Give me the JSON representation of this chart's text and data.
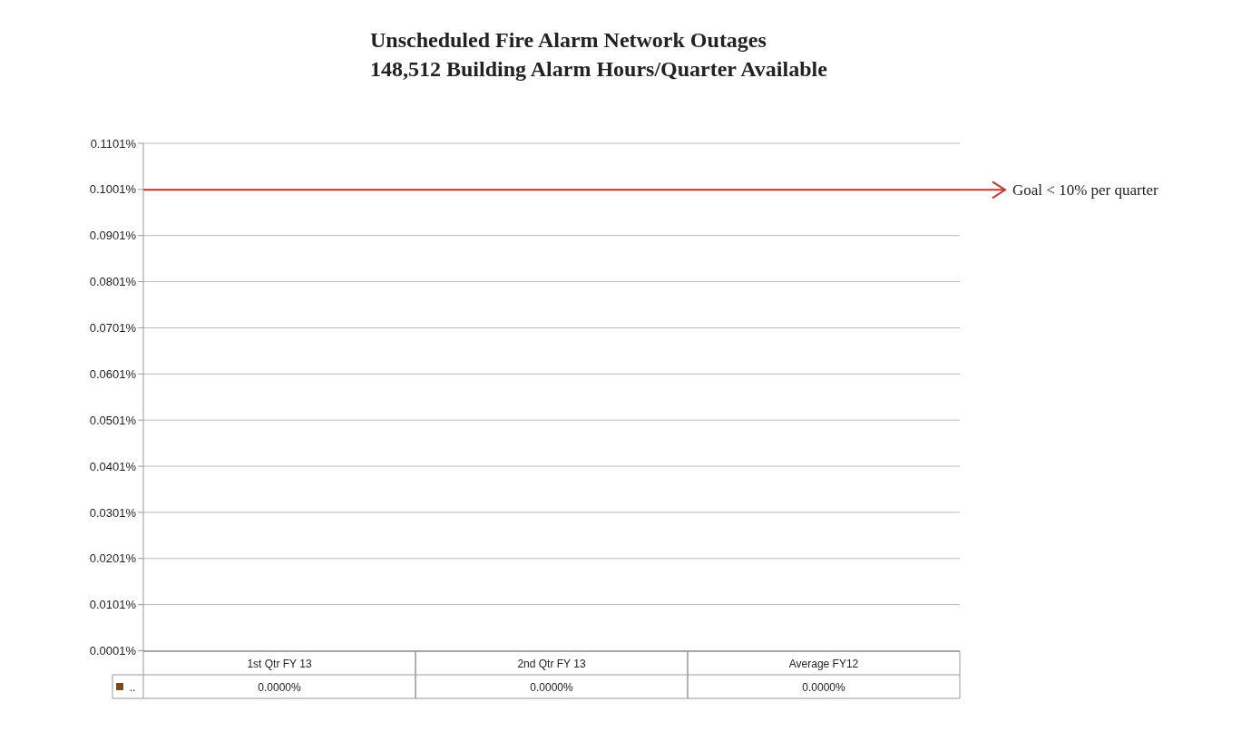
{
  "chart_data": {
    "type": "bar",
    "title": "Unscheduled Fire Alarm Network Outages",
    "subtitle": "148,512 Building Alarm Hours/Quarter Available",
    "categories": [
      "1st Qtr FY 13",
      "2nd Qtr FY 13",
      "Average FY12"
    ],
    "series": [
      {
        "name": "..",
        "color": "#7b4a1e",
        "values": [
          0,
          0,
          0
        ],
        "value_labels": [
          "0.0000%",
          "0.0000%",
          "0.0000%"
        ]
      }
    ],
    "ylim": [
      0,
      0.1101
    ],
    "yticks": [
      {
        "value": 0.0001,
        "label": "0.0001%"
      },
      {
        "value": 0.0101,
        "label": "0.0101%"
      },
      {
        "value": 0.0201,
        "label": "0.0201%"
      },
      {
        "value": 0.0301,
        "label": "0.0301%"
      },
      {
        "value": 0.0401,
        "label": "0.0401%"
      },
      {
        "value": 0.0501,
        "label": "0.0501%"
      },
      {
        "value": 0.0601,
        "label": "0.0601%"
      },
      {
        "value": 0.0701,
        "label": "0.0701%"
      },
      {
        "value": 0.0801,
        "label": "0.0801%"
      },
      {
        "value": 0.0901,
        "label": "0.0901%"
      },
      {
        "value": 0.1001,
        "label": "0.1001%"
      },
      {
        "value": 0.1101,
        "label": "0.1101%"
      }
    ],
    "ref_lines": [
      {
        "axis": "y",
        "value": 0.1,
        "label": "Goal < 10% per quarter",
        "color": "#c0392b"
      }
    ],
    "grid": "y"
  }
}
